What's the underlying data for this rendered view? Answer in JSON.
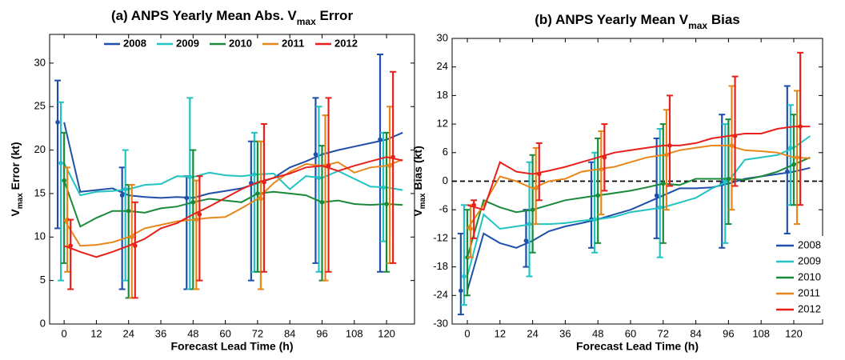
{
  "chart_data": [
    {
      "type": "line",
      "title": [
        "(a) ANPS Yearly Mean Abs. V",
        "max",
        " Error"
      ],
      "xlabel": "Forecast Lead Time (h)",
      "ylabel": [
        "V",
        "max",
        " Error (kt)"
      ],
      "x": [
        0,
        6,
        12,
        18,
        24,
        30,
        36,
        42,
        48,
        54,
        60,
        66,
        72,
        78,
        84,
        90,
        96,
        102,
        108,
        114,
        120,
        126
      ],
      "xlim": [
        -5.4,
        130.4
      ],
      "xticks": [
        0,
        12,
        24,
        36,
        48,
        60,
        72,
        84,
        96,
        108,
        120
      ],
      "ylim": [
        0,
        33.3
      ],
      "yticks": [
        0,
        5,
        10,
        15,
        20,
        25,
        30
      ],
      "legend": "top",
      "err_x": [
        0,
        24,
        48,
        72,
        96,
        120
      ],
      "series": [
        {
          "name": "2008",
          "color": "#1f4fa8",
          "values": [
            23.2,
            15.2,
            15.4,
            15.6,
            14.8,
            14.6,
            14.5,
            14.6,
            14.5,
            15.0,
            15.3,
            15.6,
            16.2,
            16.8,
            18.0,
            18.7,
            19.5,
            20.0,
            20.4,
            20.8,
            21.2,
            22.0
          ],
          "err_low": [
            11,
            4,
            4,
            5,
            7,
            6
          ],
          "err_high": [
            28,
            18,
            17,
            21,
            26,
            31
          ]
        },
        {
          "name": "2009",
          "color": "#22c3c3",
          "values": [
            18.5,
            14.8,
            15.2,
            15.3,
            15.5,
            16.0,
            16.1,
            17.0,
            16.9,
            17.4,
            17.1,
            17.0,
            17.2,
            17.3,
            15.5,
            17.0,
            16.8,
            17.6,
            16.7,
            15.8,
            15.7,
            15.4
          ],
          "err_low": [
            5,
            5,
            4,
            6,
            6,
            9.5
          ],
          "err_high": [
            25.5,
            20,
            26,
            22,
            25,
            22
          ]
        },
        {
          "name": "2010",
          "color": "#1a8a3a",
          "values": [
            16.5,
            11.2,
            12.2,
            13.0,
            13.0,
            12.8,
            13.3,
            13.5,
            14.0,
            14.4,
            14.2,
            14.0,
            15.0,
            15.2,
            15.0,
            14.8,
            14.0,
            14.2,
            13.8,
            13.7,
            13.8,
            13.7
          ],
          "err_low": [
            7,
            3,
            4,
            6,
            5,
            6
          ],
          "err_high": [
            22,
            16,
            20,
            21,
            20.5,
            22
          ]
        },
        {
          "name": "2011",
          "color": "#e8861a",
          "values": [
            12.0,
            9.0,
            9.1,
            9.4,
            10.0,
            11.0,
            11.4,
            11.8,
            12.0,
            12.2,
            12.3,
            13.3,
            14.4,
            16.2,
            17.5,
            18.4,
            18.2,
            18.6,
            17.4,
            18.0,
            18.2,
            18.9
          ],
          "err_low": [
            6,
            3,
            4,
            4,
            5,
            7
          ],
          "err_high": [
            18,
            16,
            16.5,
            21,
            24,
            25
          ]
        },
        {
          "name": "2012",
          "color": "#e8201c",
          "values": [
            9.0,
            8.3,
            7.7,
            8.3,
            9.0,
            9.8,
            11.0,
            11.6,
            12.6,
            13.5,
            14.5,
            15.5,
            16.3,
            16.8,
            17.3,
            18.0,
            18.2,
            17.6,
            18.2,
            18.7,
            19.2,
            18.8
          ],
          "err_low": [
            4,
            3,
            5,
            6,
            6,
            7
          ],
          "err_high": [
            12,
            14,
            17,
            23,
            26,
            29
          ]
        }
      ]
    },
    {
      "type": "line",
      "title": [
        "(b) ANPS Yearly Mean V",
        "max",
        " Bias"
      ],
      "xlabel": "Forecast Lead Time (h)",
      "ylabel": [
        "V",
        "max",
        " Bias (kt)"
      ],
      "x": [
        0,
        6,
        12,
        18,
        24,
        30,
        36,
        42,
        48,
        54,
        60,
        66,
        72,
        78,
        84,
        90,
        96,
        102,
        108,
        114,
        120,
        126
      ],
      "xlim": [
        -5.6,
        130.6
      ],
      "xticks": [
        0,
        12,
        24,
        36,
        48,
        60,
        72,
        84,
        96,
        108,
        120
      ],
      "ylim": [
        -30,
        30
      ],
      "yticks": [
        -30,
        -24,
        -18,
        -12,
        -6,
        0,
        6,
        12,
        18,
        24,
        30
      ],
      "zero_line": true,
      "legend": "lower right",
      "err_x": [
        0,
        24,
        48,
        72,
        96,
        120
      ],
      "series": [
        {
          "name": "2008",
          "color": "#1f4fa8",
          "values": [
            -23,
            -11,
            -13,
            -14,
            -12.5,
            -10.5,
            -9.5,
            -8.8,
            -8,
            -7,
            -6,
            -4.5,
            -3,
            -1.5,
            -1.5,
            -1.3,
            -0.5,
            0.5,
            1,
            1.5,
            2,
            2.8
          ],
          "err_low": [
            -28,
            -18,
            -14,
            -12,
            -14,
            -11
          ],
          "err_high": [
            -11,
            -6,
            4,
            9,
            14,
            20
          ]
        },
        {
          "name": "2009",
          "color": "#22c3c3",
          "values": [
            -20,
            -7,
            -10,
            -9.5,
            -9,
            -9,
            -8.8,
            -8.3,
            -8,
            -7.5,
            -6.5,
            -6,
            -5.5,
            -4.5,
            -3.5,
            -1.5,
            0,
            4.5,
            5,
            5.5,
            7,
            9.5
          ],
          "err_low": [
            -26,
            -20,
            -15,
            -16,
            -13,
            -5
          ],
          "err_high": [
            -5,
            4,
            6,
            11,
            12,
            16
          ]
        },
        {
          "name": "2010",
          "color": "#1a8a3a",
          "values": [
            -16,
            -4,
            -5.5,
            -6.5,
            -6,
            -5,
            -4,
            -3.5,
            -3,
            -2.5,
            -2,
            -1.3,
            -0.5,
            -0.8,
            0.5,
            0.5,
            0.5,
            0.3,
            1,
            2,
            3.5,
            5
          ],
          "err_low": [
            -24,
            -15,
            -13,
            -13,
            -9,
            -5
          ],
          "err_high": [
            -6,
            5.5,
            9,
            12,
            13,
            14
          ]
        },
        {
          "name": "2011",
          "color": "#e8861a",
          "values": [
            -10,
            -5,
            1,
            0,
            -1.5,
            0,
            0.5,
            2,
            2.5,
            3,
            4,
            5,
            5.5,
            6.5,
            7,
            7.5,
            7.5,
            6.5,
            6.3,
            6,
            5,
            4.8
          ],
          "err_low": [
            -16,
            -9,
            -7,
            -6,
            -6,
            -9
          ],
          "err_high": [
            -5,
            7,
            10.5,
            15,
            20,
            19
          ]
        },
        {
          "name": "2012",
          "color": "#e8201c",
          "values": [
            -5,
            -6,
            4,
            2,
            1.5,
            2.2,
            3,
            4,
            5,
            6,
            6.5,
            7,
            7.5,
            7.5,
            8,
            9,
            9.5,
            10,
            10,
            11,
            11.5,
            11.5
          ],
          "err_low": [
            -12,
            -4,
            -2,
            -1,
            -1,
            -5
          ],
          "err_high": [
            -4,
            8,
            12,
            18,
            22,
            27
          ]
        }
      ]
    }
  ]
}
